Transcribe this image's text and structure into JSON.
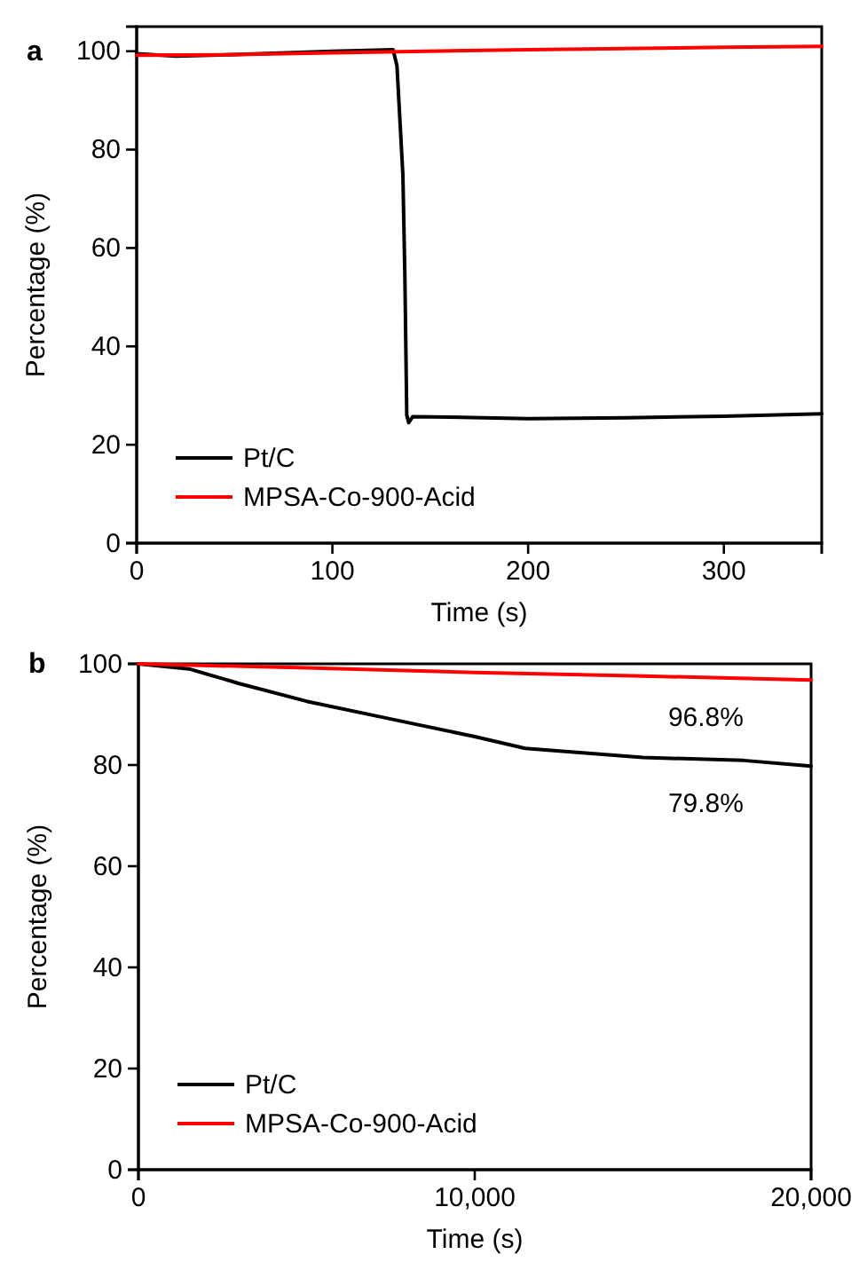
{
  "chart_data": [
    {
      "type": "line",
      "title": "a",
      "xlabel": "Time (s)",
      "ylabel": "Percentage (%)",
      "xlim": [
        0,
        350
      ],
      "xticks": [
        0,
        100,
        200,
        300
      ],
      "ylim": [
        0,
        105
      ],
      "yticks": [
        0,
        20,
        40,
        60,
        80,
        100
      ],
      "legend": "bottom left",
      "line_style": "solid",
      "marker": "none",
      "grid": false,
      "series": [
        {
          "name": "Pt/C",
          "color": "#000000",
          "x": [
            0,
            20,
            50,
            100,
            131,
            133,
            136,
            137,
            138,
            139,
            141,
            160,
            200,
            250,
            300,
            350
          ],
          "values": [
            99.5,
            99,
            99.3,
            100,
            100.3,
            97,
            75,
            55,
            26,
            24.5,
            25.7,
            25.6,
            25.3,
            25.5,
            25.8,
            26.3
          ]
        },
        {
          "name": "MPSA-Co-900-Acid",
          "color": "#ff0000",
          "x": [
            0,
            50,
            100,
            200,
            300,
            350
          ],
          "values": [
            99.2,
            99.3,
            99.7,
            100.3,
            100.8,
            101
          ]
        }
      ]
    },
    {
      "type": "line",
      "title": "b",
      "xlabel": "Time (s)",
      "ylabel": "Percentage (%)",
      "xlim": [
        0,
        20000
      ],
      "xticks": [
        0,
        {
          "value": 10000,
          "label": "10,000"
        },
        {
          "value": 20000,
          "label": "20,000"
        }
      ],
      "ylim": [
        0,
        100
      ],
      "yticks": [
        0,
        20,
        40,
        60,
        80,
        100
      ],
      "legend": "bottom left",
      "line_style": "solid",
      "marker": "none",
      "grid": false,
      "annotations": [
        {
          "text": "96.8%",
          "x": 20000,
          "y": 96.8
        },
        {
          "text": "79.8%",
          "x": 20000,
          "y": 79.8
        }
      ],
      "series": [
        {
          "name": "Pt/C",
          "color": "#000000",
          "x": [
            0,
            1500,
            3000,
            5000,
            7500,
            10000,
            11500,
            15000,
            18000,
            20000
          ],
          "values": [
            100,
            99,
            96.1,
            92.6,
            89.1,
            85.6,
            83.3,
            81.5,
            80.9,
            79.8
          ]
        },
        {
          "name": "MPSA-Co-900-Acid",
          "color": "#ff0000",
          "x": [
            0,
            5000,
            10000,
            15000,
            20000
          ],
          "values": [
            100,
            99.2,
            98.3,
            97.6,
            96.8
          ]
        }
      ]
    }
  ]
}
